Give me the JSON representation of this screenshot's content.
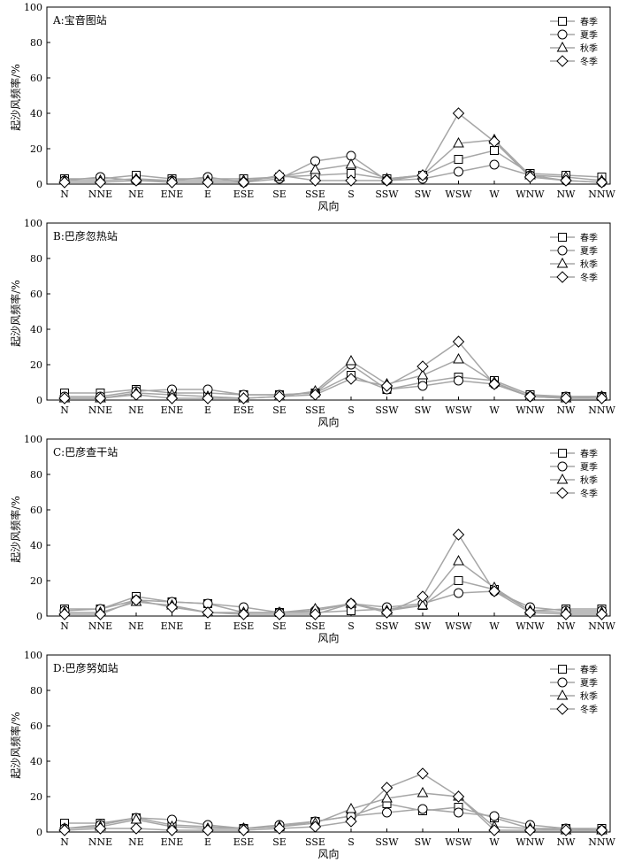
{
  "chart_data": [
    {
      "type": "line",
      "title": "A:宝音图站",
      "xlabel": "风向",
      "ylabel": "起沙风频率/%",
      "ylim": [
        0,
        100
      ],
      "yticks": [
        0,
        20,
        40,
        60,
        80,
        100
      ],
      "categories": [
        "N",
        "NNE",
        "NE",
        "ENE",
        "E",
        "ESE",
        "SE",
        "SSE",
        "S",
        "SSW",
        "SW",
        "WSW",
        "W",
        "WNW",
        "NW",
        "NNW"
      ],
      "legend_position": "top-right",
      "series": [
        {
          "name": "春季",
          "marker": "square",
          "values": [
            3,
            3,
            5,
            3,
            3,
            3,
            4,
            5,
            6,
            3,
            5,
            14,
            19,
            6,
            5,
            4
          ]
        },
        {
          "name": "夏季",
          "marker": "circle",
          "values": [
            2,
            4,
            2,
            2,
            4,
            1,
            3,
            13,
            16,
            2,
            3,
            7,
            11,
            5,
            2,
            1
          ]
        },
        {
          "name": "秋季",
          "marker": "triangle",
          "values": [
            2,
            2,
            3,
            2,
            2,
            2,
            4,
            8,
            11,
            3,
            5,
            23,
            25,
            5,
            4,
            2
          ]
        },
        {
          "name": "冬季",
          "marker": "diamond",
          "values": [
            1,
            1,
            2,
            1,
            1,
            1,
            5,
            2,
            2,
            2,
            5,
            40,
            24,
            4,
            2,
            1
          ]
        }
      ]
    },
    {
      "type": "line",
      "title": "B:巴彦忽热站",
      "xlabel": "风向",
      "ylabel": "起沙风频率/%",
      "ylim": [
        0,
        100
      ],
      "yticks": [
        0,
        20,
        40,
        60,
        80,
        100
      ],
      "categories": [
        "N",
        "NNE",
        "NE",
        "ENE",
        "E",
        "ESE",
        "SE",
        "SSE",
        "S",
        "SSW",
        "SW",
        "WSW",
        "W",
        "WNW",
        "NW",
        "NNW"
      ],
      "legend_position": "top-right",
      "series": [
        {
          "name": "春季",
          "marker": "square",
          "values": [
            4,
            4,
            6,
            4,
            4,
            3,
            3,
            4,
            14,
            6,
            10,
            13,
            11,
            3,
            2,
            2
          ]
        },
        {
          "name": "夏季",
          "marker": "circle",
          "values": [
            2,
            2,
            5,
            6,
            6,
            3,
            3,
            4,
            20,
            6,
            8,
            11,
            9,
            2,
            2,
            2
          ]
        },
        {
          "name": "秋季",
          "marker": "triangle",
          "values": [
            1,
            1,
            4,
            3,
            2,
            1,
            2,
            5,
            22,
            9,
            14,
            23,
            10,
            2,
            1,
            2
          ]
        },
        {
          "name": "冬季",
          "marker": "diamond",
          "values": [
            1,
            1,
            3,
            1,
            1,
            1,
            2,
            3,
            12,
            8,
            19,
            33,
            9,
            2,
            1,
            1
          ]
        }
      ]
    },
    {
      "type": "line",
      "title": "C:巴彦查干站",
      "xlabel": "风向",
      "ylabel": "起沙风频率/%",
      "ylim": [
        0,
        100
      ],
      "yticks": [
        0,
        20,
        40,
        60,
        80,
        100
      ],
      "categories": [
        "N",
        "NNE",
        "NE",
        "ENE",
        "E",
        "ESE",
        "SE",
        "SSE",
        "S",
        "SSW",
        "SW",
        "WSW",
        "W",
        "WNW",
        "NW",
        "NNW"
      ],
      "legend_position": "top-right",
      "series": [
        {
          "name": "春季",
          "marker": "square",
          "values": [
            4,
            4,
            11,
            8,
            7,
            2,
            2,
            2,
            3,
            4,
            6,
            20,
            15,
            3,
            4,
            4
          ]
        },
        {
          "name": "夏季",
          "marker": "circle",
          "values": [
            3,
            4,
            9,
            8,
            7,
            5,
            2,
            3,
            7,
            5,
            7,
            13,
            14,
            5,
            3,
            3
          ]
        },
        {
          "name": "秋季",
          "marker": "triangle",
          "values": [
            2,
            2,
            8,
            6,
            2,
            2,
            2,
            4,
            7,
            3,
            6,
            31,
            16,
            3,
            2,
            2
          ]
        },
        {
          "name": "冬季",
          "marker": "diamond",
          "values": [
            1,
            1,
            9,
            5,
            2,
            1,
            1,
            1,
            7,
            2,
            11,
            46,
            14,
            2,
            1,
            1
          ]
        }
      ]
    },
    {
      "type": "line",
      "title": "D:巴彦努如站",
      "xlabel": "风向",
      "ylabel": "起沙风频率/%",
      "ylim": [
        0,
        100
      ],
      "yticks": [
        0,
        20,
        40,
        60,
        80,
        100
      ],
      "categories": [
        "N",
        "NNE",
        "NE",
        "ENE",
        "E",
        "ESE",
        "SE",
        "SSE",
        "S",
        "SSW",
        "SW",
        "WSW",
        "W",
        "WNW",
        "NW",
        "NNW"
      ],
      "legend_position": "top-right",
      "series": [
        {
          "name": "春季",
          "marker": "square",
          "values": [
            5,
            5,
            8,
            4,
            3,
            2,
            3,
            6,
            9,
            16,
            12,
            14,
            8,
            2,
            2,
            2
          ]
        },
        {
          "name": "夏季",
          "marker": "circle",
          "values": [
            2,
            4,
            8,
            7,
            4,
            2,
            4,
            6,
            9,
            11,
            13,
            11,
            9,
            4,
            2,
            1
          ]
        },
        {
          "name": "秋季",
          "marker": "triangle",
          "values": [
            2,
            3,
            7,
            3,
            2,
            2,
            3,
            5,
            13,
            19,
            22,
            20,
            3,
            2,
            1,
            1
          ]
        },
        {
          "name": "冬季",
          "marker": "diamond",
          "values": [
            1,
            2,
            2,
            1,
            1,
            1,
            2,
            3,
            6,
            25,
            33,
            20,
            1,
            1,
            1,
            1
          ]
        }
      ]
    }
  ],
  "colors": {
    "series_line": "#a6a6a6",
    "marker_stroke": "#000000",
    "axis": "#000000"
  }
}
